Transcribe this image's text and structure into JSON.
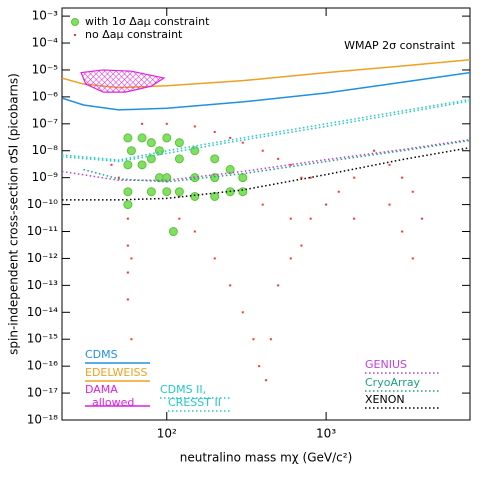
{
  "chart_data": {
    "type": "scatter",
    "x_label": "neutralino mass mχ (GeV/c²)",
    "y_label": "spin-independent cross-section σSI (picobarns)",
    "annotation": "WMAP 2σ constraint",
    "log_x": true,
    "log_y": true,
    "xlim": [
      22,
      8000
    ],
    "xticks": [
      {
        "value": 100,
        "label": "10²"
      },
      {
        "value": 1000,
        "label": "10³"
      }
    ],
    "ylim": [
      1e-18,
      0.002
    ],
    "yticks": [
      {
        "value": 1e-18,
        "label": "10⁻¹⁸"
      },
      {
        "value": 1e-17,
        "label": "10⁻¹⁷"
      },
      {
        "value": 1e-16,
        "label": "10⁻¹⁶"
      },
      {
        "value": 1e-15,
        "label": "10⁻¹⁵"
      },
      {
        "value": 1e-14,
        "label": "10⁻¹⁴"
      },
      {
        "value": 1e-13,
        "label": "10⁻¹³"
      },
      {
        "value": 1e-12,
        "label": "10⁻¹²"
      },
      {
        "value": 1e-11,
        "label": "10⁻¹¹"
      },
      {
        "value": 1e-10,
        "label": "10⁻¹⁰"
      },
      {
        "value": 1e-09,
        "label": "10⁻⁹"
      },
      {
        "value": 1e-08,
        "label": "10⁻⁸"
      },
      {
        "value": 1e-07,
        "label": "10⁻⁷"
      },
      {
        "value": 1e-06,
        "label": "10⁻⁶"
      },
      {
        "value": 1e-05,
        "label": "10⁻⁵"
      },
      {
        "value": 0.0001,
        "label": "10⁻⁴"
      },
      {
        "value": 0.001,
        "label": "10⁻³"
      }
    ],
    "series": [
      {
        "name": "no Δaμ constraint",
        "type": "scatter",
        "color": "#ff3030",
        "x": [
          57,
          57,
          57,
          57,
          57,
          57,
          57,
          60,
          60,
          70,
          100,
          150,
          200,
          250,
          300,
          400,
          500,
          600,
          800,
          120,
          150,
          200,
          250,
          300,
          350,
          380,
          420,
          450,
          500,
          600,
          700,
          800,
          1000,
          1200,
          1500,
          2000,
          2500,
          3000,
          2500,
          3000,
          3500,
          4000,
          3500,
          1500,
          400,
          600,
          700,
          300,
          120,
          50,
          45
        ],
        "values": [
          3e-08,
          3e-09,
          3e-10,
          3e-11,
          3e-12,
          3e-13,
          3e-14,
          1e-12,
          1e-15,
          1e-07,
          1e-07,
          8e-08,
          5e-08,
          3e-08,
          2e-08,
          1e-08,
          5e-09,
          3e-09,
          1e-09,
          3e-11,
          1e-11,
          1e-12,
          1e-13,
          1e-14,
          1e-15,
          1e-16,
          3e-17,
          1e-15,
          1e-13,
          1e-12,
          3e-12,
          3e-11,
          1e-10,
          3e-10,
          3e-11,
          1e-08,
          3e-09,
          1e-09,
          1e-10,
          1e-11,
          1e-12,
          3e-11,
          3e-10,
          1e-09,
          1e-10,
          3e-11,
          1e-09,
          1e-09,
          2e-10,
          1e-09,
          3e-09
        ]
      },
      {
        "name": "with 1σ Δaμ constraint",
        "type": "scatter",
        "color": "#80e060",
        "x": [
          57,
          57,
          57,
          57,
          60,
          70,
          80,
          90,
          100,
          120,
          150,
          200,
          250,
          300,
          70,
          90,
          120,
          150,
          200,
          250,
          100,
          80,
          100,
          150,
          200,
          120,
          80,
          300,
          110
        ],
        "values": [
          3e-08,
          3e-09,
          3e-10,
          1e-10,
          1e-08,
          3e-08,
          2e-08,
          1e-08,
          3e-08,
          2e-08,
          1e-08,
          5e-09,
          2e-09,
          1e-09,
          3e-09,
          1e-09,
          3e-10,
          2e-10,
          2e-10,
          3e-10,
          3e-10,
          3e-10,
          1e-09,
          1e-09,
          1e-09,
          5e-09,
          5e-09,
          3e-10,
          1e-11
        ]
      },
      {
        "name": "CDMS",
        "type": "line",
        "color": "#2090e0",
        "dash": false,
        "x": [
          22,
          30,
          50,
          100,
          300,
          1000,
          3000,
          8000
        ],
        "values": [
          9e-07,
          5e-07,
          3.3e-07,
          3.8e-07,
          6.5e-07,
          1.4e-06,
          3.5e-06,
          8e-06
        ]
      },
      {
        "name": "EDELWEISS",
        "type": "line",
        "color": "#f0a020",
        "dash": false,
        "x": [
          22,
          30,
          50,
          100,
          300,
          1000,
          3000,
          8000
        ],
        "values": [
          5e-06,
          3e-06,
          2.2e-06,
          2.6e-06,
          4e-06,
          8e-06,
          1.4e-05,
          2.4e-05
        ]
      },
      {
        "name": "DAMA",
        "note": "allowed",
        "type": "area",
        "color": "#e020e0",
        "x": [
          29,
          40,
          60,
          96,
          80,
          55,
          40,
          31
        ],
        "values": [
          8e-06,
          1e-05,
          9e-06,
          5e-06,
          2.5e-06,
          1.5e-06,
          1.5e-06,
          3e-06
        ]
      },
      {
        "name": "CDMS II,",
        "type": "line",
        "color": "#20c8c8",
        "dash": true,
        "x": [
          22,
          50,
          100,
          300,
          1000,
          3000,
          8000
        ],
        "values": [
          7e-09,
          4.5e-09,
          1e-08,
          3e-08,
          1e-07,
          3e-07,
          8e-07
        ]
      },
      {
        "name": "CRESST II",
        "type": "line",
        "color": "#20c8c8",
        "dash": true,
        "x": [
          22,
          50,
          100,
          300,
          1000,
          3000,
          8000
        ],
        "values": [
          6e-09,
          4e-09,
          8e-09,
          2.5e-08,
          8e-08,
          2.5e-07,
          7e-07
        ]
      },
      {
        "name": "GENIUS",
        "type": "line",
        "color": "#c040e0",
        "dash": true,
        "x": [
          22,
          50,
          100,
          300,
          1000,
          3000,
          8000
        ],
        "values": [
          1.7e-09,
          8e-10,
          8e-10,
          1.7e-09,
          4.7e-09,
          1.1e-08,
          2.6e-08
        ]
      },
      {
        "name": "CryoArray",
        "type": "line",
        "color": "#20a080",
        "dash": true,
        "x": [
          30,
          50,
          100,
          300,
          1000,
          3000,
          8000
        ],
        "values": [
          2e-09,
          9e-10,
          7e-10,
          1.4e-09,
          4e-09,
          1e-08,
          2.4e-08
        ]
      },
      {
        "name": "XENON",
        "type": "line",
        "color": "#000000",
        "dash": true,
        "x": [
          22,
          50,
          100,
          300,
          1000,
          3000,
          8000
        ],
        "values": [
          1.5e-10,
          1.5e-10,
          1.7e-10,
          3.5e-10,
          1.3e-09,
          4.7e-09,
          1.3e-08
        ]
      }
    ]
  }
}
